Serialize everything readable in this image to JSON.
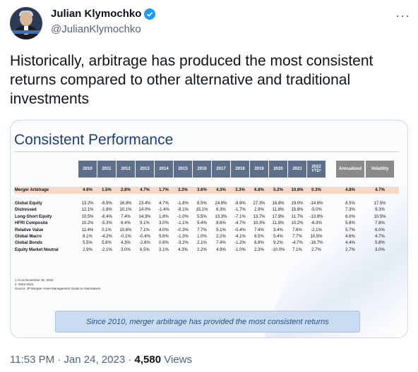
{
  "author": {
    "name": "Julian Klymochko",
    "handle": "@JulianKlymochko"
  },
  "tweet": {
    "text": "Historically, arbitrage has produced the most consistent returns compared to other alternative and traditional investments"
  },
  "slide": {
    "title": "Consistent Performance",
    "year_headers": [
      "2010",
      "2011",
      "2012",
      "2013",
      "2014",
      "2015",
      "2016",
      "2017",
      "2018",
      "2019",
      "2020",
      "2021",
      "2022 YTD¹"
    ],
    "stat_headers": [
      "Annualized",
      "Volatility"
    ],
    "highlight_row": {
      "label": "Merger Arbitrage",
      "values": [
        "4.6%",
        "1.5%",
        "2.8%",
        "4.7%",
        "1.7%",
        "3.3%",
        "3.6%",
        "4.3%",
        "3.3%",
        "6.8%",
        "5.2%",
        "10.6%",
        "0.3%",
        "4.8%",
        "4.7%"
      ]
    },
    "rows": [
      {
        "label": "Global Equity",
        "values": [
          "13.2%",
          "-6.9%",
          "16.8%",
          "23.4%",
          "4.7%",
          "-1.8%",
          "8.5%",
          "24.6%",
          "-8.9%",
          "27.3%",
          "16.8%",
          "19.0%",
          "-14.6%",
          "8.5%",
          "17.5%"
        ]
      },
      {
        "label": "Distressed",
        "values": [
          "12.1%",
          "-1.8%",
          "10.1%",
          "14.0%",
          "-1.4%",
          "-8.1%",
          "15.1%",
          "6.3%",
          "-1.7%",
          "2.9%",
          "11.8%",
          "15.6%",
          "-5.0%",
          "7.3%",
          "9.3%"
        ]
      },
      {
        "label": "Long-Short Equity",
        "values": [
          "10.5%",
          "-8.4%",
          "7.4%",
          "14.3%",
          "1.8%",
          "-1.0%",
          "5.5%",
          "13.3%",
          "-7.1%",
          "13.7%",
          "17.9%",
          "11.7%",
          "-13.8%",
          "6.0%",
          "10.5%"
        ]
      },
      {
        "label": "HFRI Composite",
        "values": [
          "10.2%",
          "-5.3%",
          "6.4%",
          "9.1%",
          "3.0%",
          "-1.1%",
          "5.4%",
          "8.6%",
          "-4.7%",
          "10.3%",
          "11.8%",
          "10.2%",
          "-6.3%",
          "5.8%",
          "7.8%"
        ]
      },
      {
        "label": "Relative Value",
        "values": [
          "11.4%",
          "0.1%",
          "10.6%",
          "7.1%",
          "4.0%",
          "-0.3%",
          "7.7%",
          "5.1%",
          "-0.4%",
          "7.4%",
          "3.4%",
          "7.6%",
          "-2.1%",
          "5.7%",
          "6.0%"
        ]
      },
      {
        "label": "Global Macro",
        "values": [
          "8.1%",
          "-4.2%",
          "-0.1%",
          "-0.4%",
          "5.6%",
          "-1.3%",
          "1.0%",
          "2.2%",
          "-4.1%",
          "6.5%",
          "5.4%",
          "7.7%",
          "10.5%",
          "4.6%",
          "4.7%"
        ]
      },
      {
        "label": "Global Bonds",
        "values": [
          "5.5%",
          "5.6%",
          "4.3%",
          "-2.6%",
          "0.6%",
          "-3.2%",
          "2.1%",
          "7.4%",
          "-1.2%",
          "6.8%",
          "9.2%",
          "-4.7%",
          "-16.7%",
          "4.4%",
          "5.8%"
        ]
      },
      {
        "label": "Equity Market Neutral",
        "values": [
          "2.9%",
          "-2.1%",
          "3.0%",
          "6.5%",
          "3.1%",
          "4.3%",
          "2.2%",
          "4.9%",
          "-1.0%",
          "2.3%",
          "-10.0%",
          "7.1%",
          "2.7%",
          "2.7%",
          "3.0%"
        ]
      }
    ],
    "footnotes": [
      "1 As at November 30, 2022",
      "2. 2002-2021",
      "Source: JP Morgan Asset Management Guide to Alternatives"
    ],
    "callout": "Since 2010, merger arbitrage has provided the most consistent returns"
  },
  "meta": {
    "time": "11:53 PM · Jan 24, 2023 · ",
    "views_count": "4,580",
    "views_label": " Views"
  },
  "colors": {
    "header_blue": "#5d6f8a",
    "header_gray": "#8a8a8a",
    "highlight": "#f7d7c6",
    "callout_bg": "#c9dcf1",
    "verified": "#1d9bf0"
  }
}
